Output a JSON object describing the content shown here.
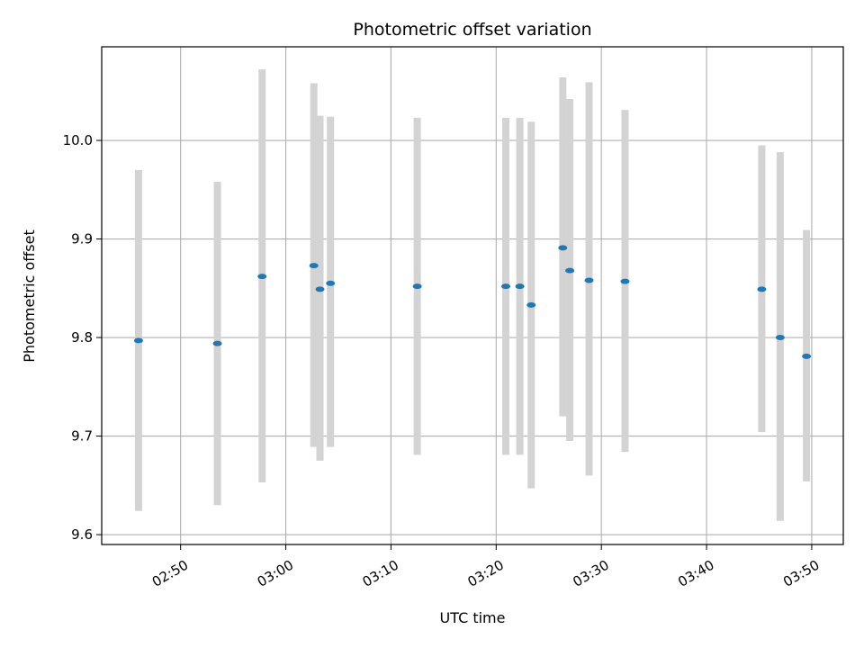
{
  "chart_data": {
    "type": "scatter",
    "title": "Photometric offset variation",
    "xlabel": "UTC time",
    "ylabel": "Photometric offset",
    "x_ticks": [
      "02:50",
      "03:00",
      "03:10",
      "03:20",
      "03:30",
      "03:40",
      "03:50"
    ],
    "y_ticks": [
      "9.6",
      "9.7",
      "9.8",
      "9.9",
      "10.0"
    ],
    "xlim": [
      "02:42:30",
      "03:53:00"
    ],
    "ylim": [
      9.59,
      10.095
    ],
    "grid": true,
    "point_color": "#1f77b4",
    "errorbar_color": "#d3d3d3",
    "series": [
      {
        "points": [
          {
            "x": "02:46:00",
            "y": 9.797,
            "y_low": 9.624,
            "y_high": 9.97
          },
          {
            "x": "02:53:30",
            "y": 9.794,
            "y_low": 9.63,
            "y_high": 9.958
          },
          {
            "x": "02:57:45",
            "y": 9.862,
            "y_low": 9.653,
            "y_high": 10.072
          },
          {
            "x": "03:02:40",
            "y": 9.873,
            "y_low": 9.689,
            "y_high": 10.058
          },
          {
            "x": "03:03:15",
            "y": 9.849,
            "y_low": 9.675,
            "y_high": 10.025
          },
          {
            "x": "03:04:15",
            "y": 9.855,
            "y_low": 9.689,
            "y_high": 10.024
          },
          {
            "x": "03:12:30",
            "y": 9.852,
            "y_low": 9.681,
            "y_high": 10.023
          },
          {
            "x": "03:20:55",
            "y": 9.852,
            "y_low": 9.681,
            "y_high": 10.023
          },
          {
            "x": "03:22:15",
            "y": 9.852,
            "y_low": 9.681,
            "y_high": 10.023
          },
          {
            "x": "03:23:20",
            "y": 9.833,
            "y_low": 9.647,
            "y_high": 10.019
          },
          {
            "x": "03:26:20",
            "y": 9.891,
            "y_low": 9.72,
            "y_high": 10.064
          },
          {
            "x": "03:27:00",
            "y": 9.868,
            "y_low": 9.695,
            "y_high": 10.042
          },
          {
            "x": "03:28:50",
            "y": 9.858,
            "y_low": 9.66,
            "y_high": 10.059
          },
          {
            "x": "03:32:15",
            "y": 9.857,
            "y_low": 9.684,
            "y_high": 10.031
          },
          {
            "x": "03:45:15",
            "y": 9.849,
            "y_low": 9.704,
            "y_high": 9.995
          },
          {
            "x": "03:47:00",
            "y": 9.8,
            "y_low": 9.614,
            "y_high": 9.988
          },
          {
            "x": "03:49:30",
            "y": 9.781,
            "y_low": 9.654,
            "y_high": 9.909
          }
        ]
      }
    ]
  }
}
